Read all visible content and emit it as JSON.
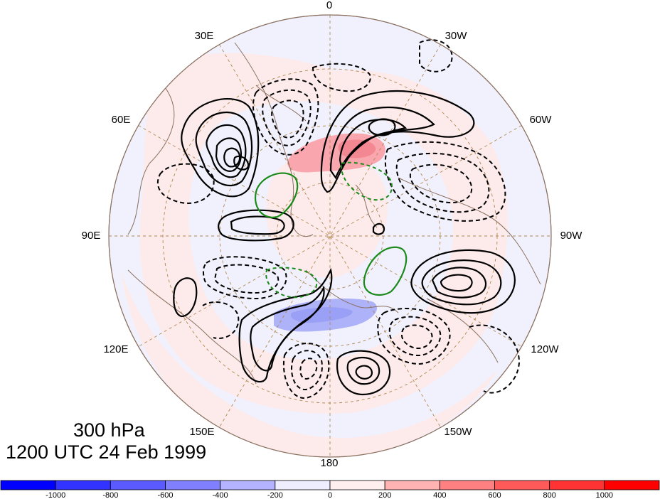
{
  "map": {
    "projection": "north-polar-stereographic",
    "longitude_labels": [
      {
        "lon": 0,
        "text": "0"
      },
      {
        "lon": 30,
        "text": "30W"
      },
      {
        "lon": 60,
        "text": "60W"
      },
      {
        "lon": 90,
        "text": "90W"
      },
      {
        "lon": 120,
        "text": "120W"
      },
      {
        "lon": 150,
        "text": "150W"
      },
      {
        "lon": 180,
        "text": "180"
      },
      {
        "lon": 210,
        "text": "150E"
      },
      {
        "lon": 240,
        "text": "120E"
      },
      {
        "lon": 270,
        "text": "90E"
      },
      {
        "lon": 300,
        "text": "60E"
      },
      {
        "lon": 330,
        "text": "30E"
      }
    ],
    "background_shading": {
      "positive_color": "#fde8e8",
      "weak_negative_color": "#eeeeff"
    },
    "contour_colors": {
      "main": "#000000",
      "secondary": "#1a8a1a",
      "coastline": "#8a7060",
      "grid": "#b08850"
    }
  },
  "title": {
    "level": "300 hPa",
    "time": "1200 UTC 24 Feb 1999"
  },
  "colorbar": {
    "bins": [
      {
        "color": "#0000ff"
      },
      {
        "color": "#3333ff"
      },
      {
        "color": "#5a5aff"
      },
      {
        "color": "#8080ff"
      },
      {
        "color": "#b3b3ff"
      },
      {
        "color": "#eeeeff"
      },
      {
        "color": "#ffeeee"
      },
      {
        "color": "#ffb3b3"
      },
      {
        "color": "#ff8080"
      },
      {
        "color": "#ff5a5a"
      },
      {
        "color": "#ff3333"
      },
      {
        "color": "#ff0000"
      }
    ],
    "tick_labels": [
      "-1000",
      "-800",
      "-600",
      "-400",
      "-200",
      "0",
      "200",
      "400",
      "600",
      "800",
      "1000"
    ]
  }
}
